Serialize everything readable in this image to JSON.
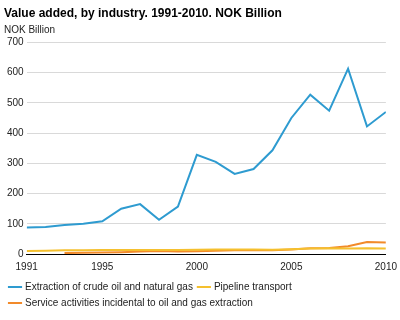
{
  "chart_data": {
    "type": "line",
    "title": "Value added, by industry. 1991-2010. NOK Billion",
    "ylabel": "NOK Billion",
    "x": [
      1991,
      1992,
      1993,
      1994,
      1995,
      1996,
      1997,
      1998,
      1999,
      2000,
      2001,
      2002,
      2003,
      2004,
      2005,
      2006,
      2007,
      2008,
      2009,
      2010
    ],
    "series": [
      {
        "name": "Extraction of crude oil and natural gas",
        "color": "#2e9bd0",
        "values": [
          88,
          89,
          96,
          100,
          108,
          150,
          165,
          113,
          157,
          328,
          305,
          265,
          281,
          343,
          450,
          527,
          474,
          613,
          422,
          470
        ]
      },
      {
        "name": "Pipeline transport",
        "color": "#f5c02e",
        "values": [
          10,
          11,
          12,
          12,
          13,
          13,
          13,
          13,
          13,
          14,
          15,
          15,
          15,
          14,
          16,
          18,
          19,
          18,
          19,
          18
        ]
      },
      {
        "name": "Service activities incidental to oil and gas extraction",
        "color": "#f28a2a",
        "values": [
          null,
          null,
          3,
          4,
          5,
          6,
          8,
          10,
          8,
          9,
          11,
          12,
          12,
          12,
          15,
          19,
          20,
          26,
          40,
          38
        ]
      }
    ],
    "xlim": [
      1991,
      2010
    ],
    "xticks": [
      1991,
      1995,
      2000,
      2005,
      2010
    ],
    "ylim": [
      0,
      700
    ],
    "yticks": [
      0,
      100,
      200,
      300,
      400,
      500,
      600,
      700
    ],
    "grid": true,
    "legend": "bottom"
  }
}
